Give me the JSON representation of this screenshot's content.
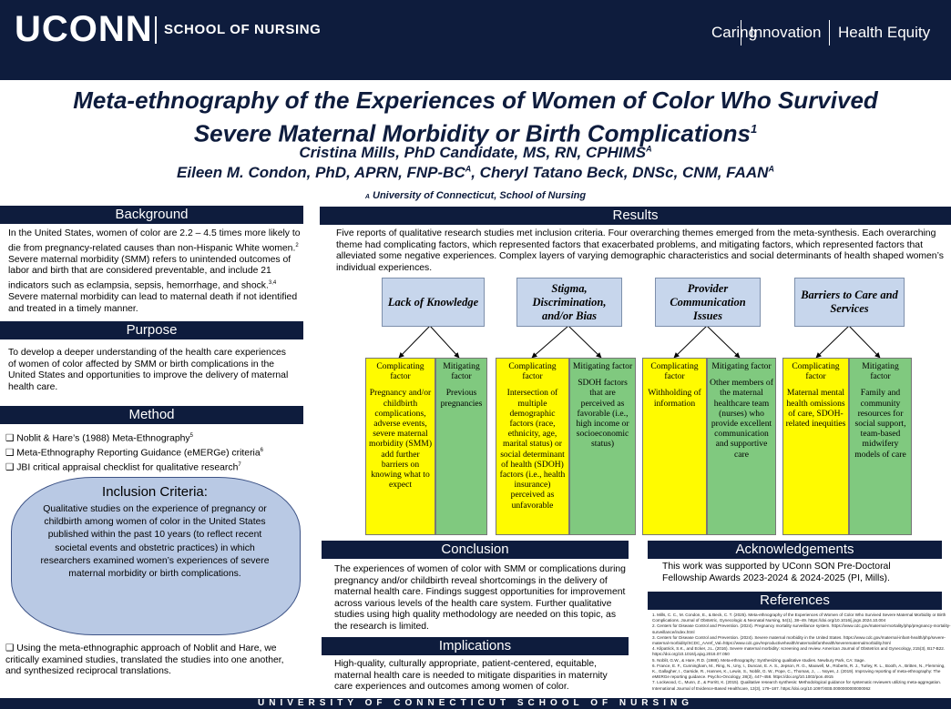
{
  "header": {
    "logo": "UCONN",
    "school": "SCHOOL OF NURSING",
    "taglines": [
      "Caring",
      "Innovation",
      "Health Equity"
    ]
  },
  "title": {
    "line1": "Meta-ethnography of the Experiences of Women of Color Who Survived",
    "line2": "Severe Maternal Morbidity or Birth Complications",
    "line2_sup": "1",
    "author1": "Cristina Mills, PhD Candidate, MS, RN, CPHIMS",
    "author1_sup": "A",
    "author2a": "Eileen M. Condon, PhD, APRN, FNP-BC",
    "author2a_sup": "A",
    "author2b": ", Cheryl Tatano Beck, DNSc, CNM, FAAN",
    "author2b_sup": "A",
    "affil_sup": "A",
    "affil": "University of Connecticut, School of Nursing"
  },
  "background": {
    "heading": "Background",
    "text_a": "In the United States, women of color are 2.2 – 4.5 times more likely to die from pregnancy-related causes than non-Hispanic White women.",
    "sup_a": "2",
    "text_b": " Severe maternal morbidity (SMM) refers to unintended outcomes of labor and birth that are considered preventable, and include 21 indicators such as eclampsia, sepsis, hemorrhage, and shock.",
    "sup_b": "3,4",
    "text_c": " Severe maternal morbidity can lead to maternal death if not identified and treated in a timely manner."
  },
  "purpose": {
    "heading": "Purpose",
    "text": "To develop a deeper understanding of the health care experiences of women of color affected by SMM or birth complications in the United States and opportunities to improve the delivery of maternal health care."
  },
  "method": {
    "heading": "Method",
    "items": [
      {
        "text": "Noblit & Hare’s (1988) Meta-Ethnography",
        "sup": "5"
      },
      {
        "text": "Meta-Ethnography Reporting Guidance (eMERGe) criteria",
        "sup": "6"
      },
      {
        "text": "JBI critical appraisal checklist for qualitative research",
        "sup": "7"
      }
    ],
    "final": "Using the meta-ethnographic approach of Noblit and Hare, we critically examined studies, translated the studies into one another, and synthesized reciprocal translations.",
    "checkbox_glyph": "❑"
  },
  "inclusion": {
    "title": "Inclusion Criteria:",
    "text": "Qualitative studies on the experience of pregnancy or childbirth among women of color in the United States published within the past 10 years (to reflect recent societal events and obstetric practices) in which researchers examined women’s experiences of severe maternal morbidity or birth complications."
  },
  "results": {
    "heading": "Results",
    "intro": "Five reports of qualitative research studies met inclusion criteria. Four overarching themes emerged from the meta-synthesis. Each overarching theme had complicating factors, which represented factors that exacerbated problems, and mitigating factors, which represented factors that alleviated some negative experiences. Complex layers of varying demographic characteristics and social determinants of health shaped women’s individual experiences.",
    "complicating_label": "Complicating factor",
    "mitigating_label": "Mitigating factor",
    "themes": [
      {
        "name": "Lack of Knowledge",
        "complicating": "Pregnancy and/or childbirth complications, adverse events, severe maternal morbidity (SMM) add further barriers on knowing what to expect",
        "mitigating": "Previous pregnancies"
      },
      {
        "name": "Stigma, Discrimination, and/or Bias",
        "complicating": "Intersection of multiple demographic factors (race, ethnicity, age, marital status) or social determinant of health (SDOH) factors (i.e., health insurance) perceived as unfavorable",
        "mitigating": "SDOH factors that are perceived as favorable (i.e., high income or socioeconomic status)"
      },
      {
        "name": "Provider Communication Issues",
        "complicating": "Withholding of information",
        "mitigating": "Other members of the maternal healthcare team (nurses) who provide excellent communication and supportive care"
      },
      {
        "name": "Barriers to Care and Services",
        "complicating": "Maternal mental health omissions of care, SDOH-related inequities",
        "mitigating": "Family and community resources for social support, team-based midwifery models of care"
      }
    ]
  },
  "conclusion": {
    "heading": "Conclusion",
    "text": "The experiences of women of color with SMM or complications during pregnancy and/or childbirth reveal shortcomings in the delivery of maternal health care. Findings suggest opportunities for improvement across various levels of the health care system. Further qualitative studies using high quality methodology are needed on this topic, as the research is limited."
  },
  "implications": {
    "heading": "Implications",
    "text": "High-quality, culturally appropriate, patient-centered, equitable, maternal health care is needed to mitigate disparities in maternity care experiences and outcomes among women of color."
  },
  "acknowledgements": {
    "heading": "Acknowledgements",
    "text": "This work was supported by UConn SON Pre-Doctoral Fellowship Awards 2023-2024 & 2024-2025 (PI, Mills)."
  },
  "references": {
    "heading": "References",
    "items": [
      "1. Mills, C. C., M. Condon, E., & Beck, C. T. (2025). Meta-ethnography of the Experiences of Women of Color Who Survived Severe Maternal Morbidity or Birth Complications. Journal of Obstetric, Gynecologic & Neonatal Nursing, 54(1), 38–49. https://doi.org/10.1016/j.jogn.2024.10.004",
      "2. Centers for Disease Control and Prevention. (2024). Pregnancy mortality surveillance system. https://www.cdc.gov/maternal-mortality/php/pregnancy-mortality-surveillance/index.html",
      "3. Centers for Disease Control and Prevention. (2024). Severe maternal morbidity in the United States. https://www.cdc.gov/maternal-infant-health/php/severe-maternal-morbidity/SCDC_AAref_Val=https://www.cdc.gov/reproductivehealth/maternalinfanthealth/severematernalmorbidity.html",
      "4. Kilpatrick, S.K., and Ecker, J.L. (2016). Severe maternal morbidity: screening and review. American Journal of Obstetrics and Gynecology, 215(3), B17-B22. https://doi.org/10.1016/j.ajog.2016.07.050",
      "5. Noblit, G.W., & Hare, R.D. (1988). Meta-ethnography: Synthesizing qualitative studies. Newbury Park, CA: Sage.",
      "6. France, E. F., Cunningham, M., Ring, N., Uny, I., Duncan, E. A. S., Jepson, R. G., Maxwell, M., Roberts, R. J., Turley, R. L., Booth, A., Britten, N., Flemming, K., Gallagher, I., Garside, R., Hannes, K., Lewin, S., Noblit, G. W., Pope, C., Thomas, J., … Noyes, J. (2019). Improving reporting of meta-ethnography: The eMERGe reporting guidance. Psycho-Oncology, 28(3), 447–458. https://doi.org/10.1002/pon.4915",
      "7. Lockwood, C., Munn, Z., & Porritt, K. (2015). Qualitative research synthesis: Methodological guidance for systematic reviewers utilizing meta-aggregation. International Journal of Evidence-Based Healthcare, 13(3), 179–187. https://doi.org/10.1097/XEB.0000000000000062"
    ]
  },
  "footer": {
    "text": "UNIVERSITY OF CONNECTICUT SCHOOL OF NURSING"
  },
  "colors": {
    "navy": "#0e1c3d",
    "theme_box": "#c7d6ec",
    "complicating": "#fffb00",
    "mitigating": "#80c97f",
    "cloud": "#b9c9e4"
  }
}
